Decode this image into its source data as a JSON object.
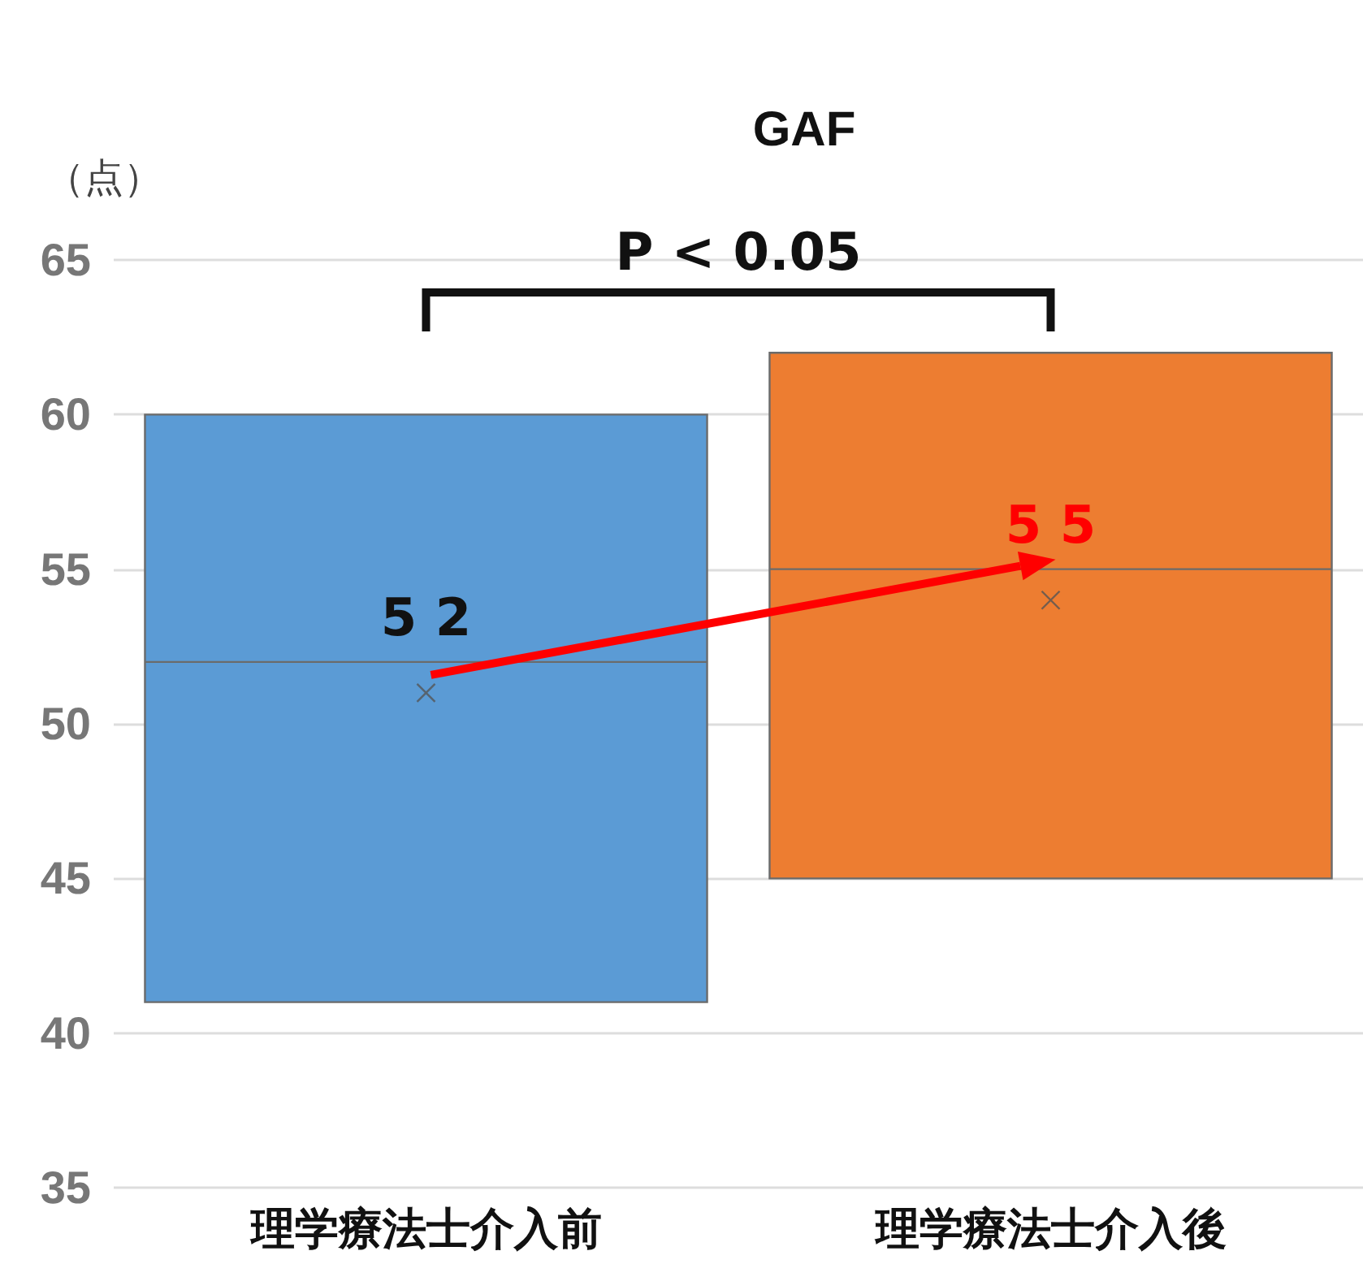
{
  "chart_data": {
    "type": "box",
    "title": "GAF",
    "ylabel": "（点）",
    "categories": [
      "理学療法士介入前",
      "理学療法士介入後"
    ],
    "boxes": [
      {
        "low": 41,
        "q1": 41,
        "median": 52,
        "q3": 60,
        "high": 60,
        "mean": 51
      },
      {
        "low": 45,
        "q1": 45,
        "median": 55,
        "q3": 62,
        "high": 62,
        "mean": 54
      }
    ],
    "colors": [
      "#5b9bd5",
      "#ed7d31"
    ],
    "ylim": [
      35,
      65
    ],
    "yticks": [
      35,
      40,
      45,
      50,
      55,
      60,
      65
    ],
    "grid": "y",
    "marker": "cross",
    "annotations": [
      {
        "text": "5 2",
        "x": "理学療法士介入前",
        "y": 52
      },
      {
        "text": "5 5",
        "x": "理学療法士介入後",
        "y": 55
      },
      "P < 0.05"
    ]
  }
}
